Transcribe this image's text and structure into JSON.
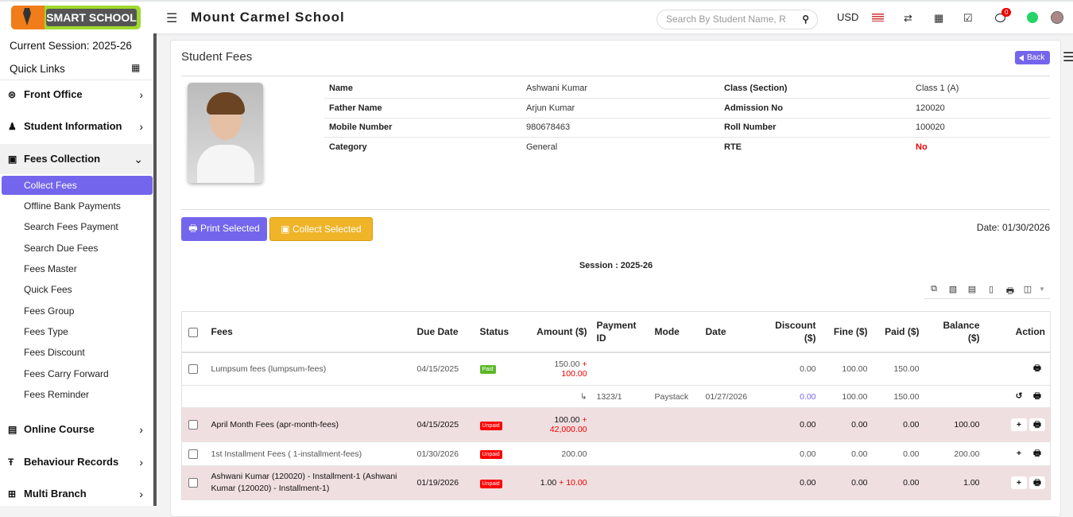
{
  "header": {
    "logo_text": "SMART SCHOOL",
    "school_name": "Mount Carmel School",
    "search_placeholder": "Search By Student Name, R",
    "currency": "USD",
    "notification_count": "0"
  },
  "sidebar": {
    "session": "Current Session: 2025-26",
    "quick_links": "Quick Links",
    "menus": [
      {
        "label": "Front Office"
      },
      {
        "label": "Student Information"
      },
      {
        "label": "Fees Collection"
      },
      {
        "label": "Online Course"
      },
      {
        "label": "Behaviour Records"
      },
      {
        "label": "Multi Branch"
      }
    ],
    "sub_items": [
      "Collect Fees",
      "Offline Bank Payments",
      "Search Fees Payment",
      "Search Due Fees",
      "Fees Master",
      "Quick Fees",
      "Fees Group",
      "Fees Type",
      "Fees Discount",
      "Fees Carry Forward",
      "Fees Reminder"
    ]
  },
  "page": {
    "title": "Student Fees",
    "back": "Back",
    "print_selected": "Print Selected",
    "collect_selected": "Collect Selected",
    "date": "Date: 01/30/2026",
    "session": "Session : 2025-26"
  },
  "student": {
    "name_l": "Name",
    "name": "Ashwani Kumar",
    "class_l": "Class (Section)",
    "class": "Class 1 (A)",
    "father_l": "Father Name",
    "father": "Arjun Kumar",
    "adm_l": "Admission No",
    "adm": "120020",
    "mobile_l": "Mobile Number",
    "mobile": "980678463",
    "roll_l": "Roll Number",
    "roll": "100020",
    "cat_l": "Category",
    "cat": "General",
    "rte_l": "RTE",
    "rte": "No"
  },
  "colors": {
    "accent": "#7466ec",
    "collect": "#f0b429",
    "paid": "#5cb82a",
    "unpaid": "#ff0000",
    "row_highlight": "#f0dfe0"
  },
  "table": {
    "headers": [
      "Fees",
      "Due Date",
      "Status",
      "Amount ($)",
      "Payment ID",
      "Mode",
      "Date",
      "Discount ($)",
      "Fine ($)",
      "Paid ($)",
      "Balance ($)",
      "Action"
    ],
    "rows": [
      {
        "fees": "Lumpsum fees (lumpsum-fees)",
        "due": "04/15/2025",
        "status": "Paid",
        "amount": "150.00",
        "amount_extra": "100.00",
        "discount": "0.00",
        "fine": "100.00",
        "paid": "150.00",
        "balance": ""
      },
      {
        "payment_id": "1323/1",
        "mode": "Paystack",
        "date": "01/27/2026",
        "discount": "0.00",
        "fine": "100.00",
        "paid": "150.00"
      },
      {
        "fees": "April Month Fees (apr-month-fees)",
        "due": "04/15/2025",
        "status": "Unpaid",
        "amount": "100.00",
        "amount_extra": "42,000.00",
        "discount": "0.00",
        "fine": "0.00",
        "paid": "0.00",
        "balance": "100.00"
      },
      {
        "fees": "1st Installment Fees ( 1-installment-fees)",
        "due": "01/30/2026",
        "status": "Unpaid",
        "amount": "200.00",
        "discount": "0.00",
        "fine": "0.00",
        "paid": "0.00",
        "balance": "200.00"
      },
      {
        "fees": "Ashwani Kumar (120020) - Installment-1 (Ashwani Kumar (120020) - Installment-1)",
        "due": "01/19/2026",
        "status": "Unpaid",
        "amount": "1.00",
        "amount_extra": "10.00",
        "discount": "0.00",
        "fine": "0.00",
        "paid": "0.00",
        "balance": "1.00"
      }
    ]
  }
}
